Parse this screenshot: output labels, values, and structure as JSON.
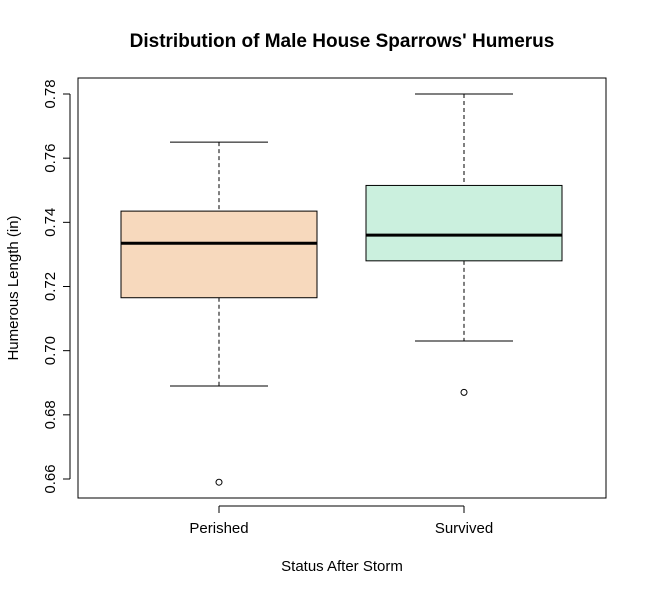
{
  "chart_data": {
    "type": "boxplot",
    "title": "Distribution  of Male House Sparrows' Humerus",
    "xlabel": "Status After Storm",
    "ylabel": "Humerous Length (in)",
    "ylim": [
      0.654,
      0.785
    ],
    "yticks": [
      0.66,
      0.68,
      0.7,
      0.72,
      0.74,
      0.76,
      0.78
    ],
    "ytick_labels": [
      "0.66",
      "0.68",
      "0.70",
      "0.72",
      "0.74",
      "0.76",
      "0.78"
    ],
    "categories": [
      "Perished",
      "Survived"
    ],
    "boxes": [
      {
        "label": "Perished",
        "whisker_low": 0.689,
        "q1": 0.7165,
        "median": 0.7335,
        "q3": 0.7435,
        "whisker_high": 0.765,
        "outliers": [
          0.659
        ],
        "color": "#f7d9bd"
      },
      {
        "label": "Survived",
        "whisker_low": 0.703,
        "q1": 0.728,
        "median": 0.736,
        "q3": 0.7515,
        "whisker_high": 0.78,
        "outliers": [
          0.687
        ],
        "color": "#cbf0de"
      }
    ],
    "grid": false
  }
}
